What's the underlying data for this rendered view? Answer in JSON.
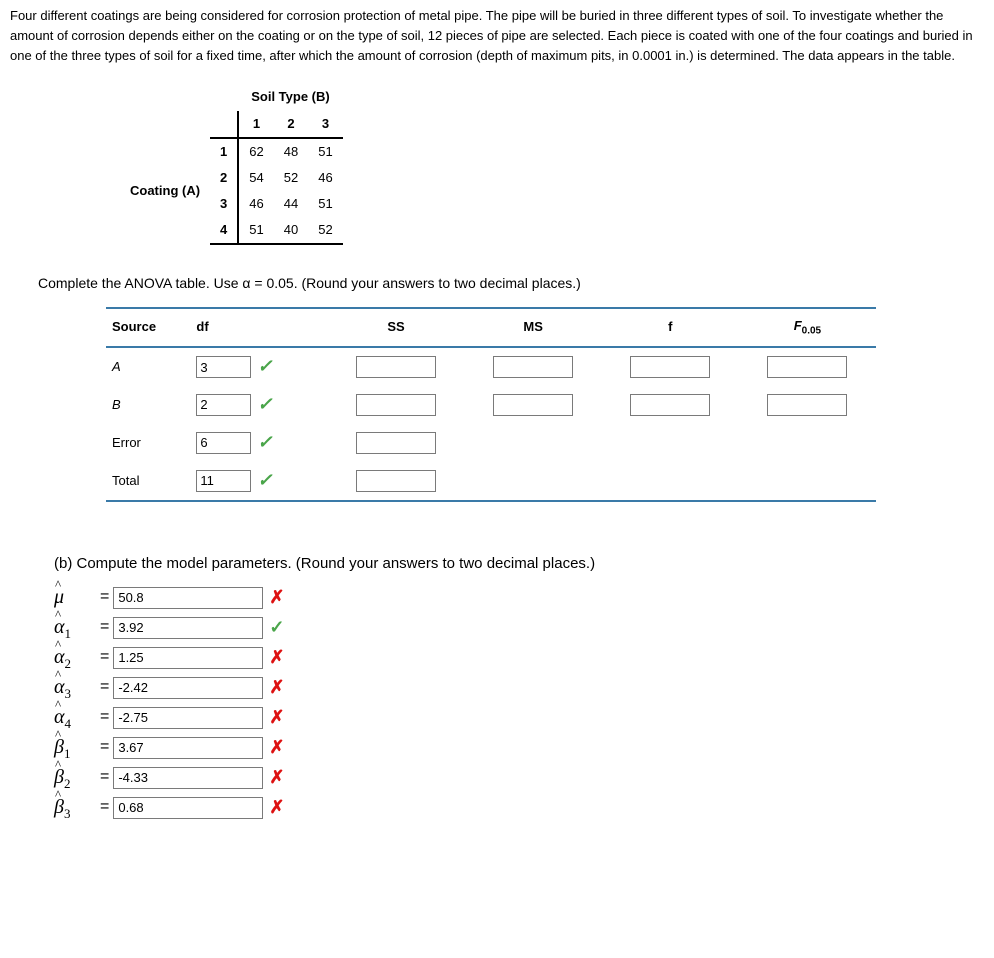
{
  "problem_text": "Four different coatings are being considered for corrosion protection of metal pipe. The pipe will be buried in three different types of soil. To investigate whether the amount of corrosion depends either on the coating or on the type of soil, 12 pieces of pipe are selected. Each piece is coated with one of the four coatings and buried in one of the three types of soil for a fixed time, after which the amount of corrosion (depth of maximum pits, in 0.0001 in.) is determined. The data appears in the table.",
  "data_table": {
    "top_label": "Soil Type (B)",
    "side_label": "Coating (A)",
    "col_headers": [
      "1",
      "2",
      "3"
    ],
    "row_headers": [
      "1",
      "2",
      "3",
      "4"
    ],
    "cells": [
      [
        "62",
        "48",
        "51"
      ],
      [
        "54",
        "52",
        "46"
      ],
      [
        "46",
        "44",
        "51"
      ],
      [
        "51",
        "40",
        "52"
      ]
    ]
  },
  "anova_instruction": "Complete the ANOVA table. Use α = 0.05. (Round your answers to two decimal places.)",
  "anova": {
    "headers": {
      "source": "Source",
      "df": "df",
      "ss": "SS",
      "ms": "MS",
      "f": "f",
      "fcrit": "F",
      "fcrit_sub": "0.05"
    },
    "rows": [
      {
        "label": "A",
        "df": "3",
        "df_mark": "check",
        "ss": "",
        "ms": "",
        "f": "",
        "fc": ""
      },
      {
        "label": "B",
        "df": "2",
        "df_mark": "check",
        "ss": "",
        "ms": "",
        "f": "",
        "fc": ""
      },
      {
        "label": "Error",
        "df": "6",
        "df_mark": "check",
        "ss": "",
        "ms": null,
        "f": null,
        "fc": null
      },
      {
        "label": "Total",
        "df": "11",
        "df_mark": "check",
        "ss": "",
        "ms": null,
        "f": null,
        "fc": null
      }
    ]
  },
  "part_b_text": "(b) Compute the model parameters. (Round your answers to two decimal places.)",
  "parameters": [
    {
      "symbol": "μ",
      "sub": "",
      "value": "50.8",
      "mark": "cross"
    },
    {
      "symbol": "α",
      "sub": "1",
      "value": "3.92",
      "mark": "check"
    },
    {
      "symbol": "α",
      "sub": "2",
      "value": "1.25",
      "mark": "cross"
    },
    {
      "symbol": "α",
      "sub": "3",
      "value": "-2.42",
      "mark": "cross"
    },
    {
      "symbol": "α",
      "sub": "4",
      "value": "-2.75",
      "mark": "cross"
    },
    {
      "symbol": "β",
      "sub": "1",
      "value": "3.67",
      "mark": "cross"
    },
    {
      "symbol": "β",
      "sub": "2",
      "value": "-4.33",
      "mark": "cross"
    },
    {
      "symbol": "β",
      "sub": "3",
      "value": "0.68",
      "mark": "cross"
    }
  ]
}
